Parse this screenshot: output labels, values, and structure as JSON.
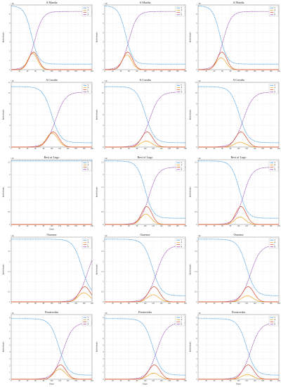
{
  "colors": {
    "S": "#2f8fd8",
    "A": "#f0a020",
    "I": "#d04a30",
    "R": "#8e3ba8"
  },
  "legend_labels": [
    "S",
    "A",
    "I",
    "R"
  ],
  "xlabel": "Days",
  "ylabel": "Individuals",
  "chart_data": [
    {
      "type": "line",
      "title": "A Mariña",
      "exponent": "×10⁴",
      "xlim": [
        0,
        200
      ],
      "ylim": [
        0,
        7
      ],
      "yticks": [
        0,
        1,
        2,
        3,
        4,
        5,
        6,
        7
      ],
      "xticks": [
        0,
        20,
        40,
        60,
        80,
        100,
        120,
        140,
        160,
        180,
        200
      ],
      "show_xlabel": false,
      "S": {
        "top": 6.9,
        "bottom": 0.6,
        "mid": 50,
        "width": 9
      },
      "R": {
        "top": 6.3,
        "mid": 58,
        "width": 10
      },
      "I": {
        "peak": 1.9,
        "center": 55,
        "width": 12
      },
      "A": {
        "peak": 1.75,
        "center": 53,
        "width": 12
      }
    },
    {
      "type": "line",
      "title": "A Mariña",
      "exponent": "×10⁴",
      "xlim": [
        0,
        200
      ],
      "ylim": [
        0,
        7
      ],
      "yticks": [
        0,
        1,
        2,
        3,
        4,
        5,
        6,
        7
      ],
      "xticks": [
        0,
        20,
        40,
        60,
        80,
        100,
        120,
        140,
        160,
        180,
        200
      ],
      "show_xlabel": false,
      "S": {
        "top": 6.9,
        "bottom": 0.6,
        "mid": 52,
        "width": 9
      },
      "R": {
        "top": 6.3,
        "mid": 60,
        "width": 10
      },
      "I": {
        "peak": 1.9,
        "center": 57,
        "width": 12
      },
      "A": {
        "peak": 1.6,
        "center": 55,
        "width": 12
      }
    },
    {
      "type": "line",
      "title": "A Mariña",
      "exponent": "×10⁴",
      "xlim": [
        0,
        200
      ],
      "ylim": [
        0,
        7
      ],
      "yticks": [
        0,
        1,
        2,
        3,
        4,
        5,
        6,
        7
      ],
      "xticks": [
        0,
        20,
        40,
        60,
        80,
        100,
        120,
        140,
        160,
        180,
        200
      ],
      "show_xlabel": false,
      "S": {
        "top": 6.9,
        "bottom": 0.6,
        "mid": 54,
        "width": 9
      },
      "R": {
        "top": 6.3,
        "mid": 62,
        "width": 10
      },
      "I": {
        "peak": 1.9,
        "center": 59,
        "width": 12
      },
      "A": {
        "peak": 1.3,
        "center": 57,
        "width": 12
      }
    },
    {
      "type": "line",
      "title": "A Coruña",
      "exponent": "×10⁵",
      "xlim": [
        0,
        200
      ],
      "ylim": [
        0,
        12
      ],
      "yticks": [
        0,
        2,
        4,
        6,
        8,
        10,
        12
      ],
      "xticks": [
        0,
        20,
        40,
        60,
        80,
        100,
        120,
        140,
        160,
        180,
        200
      ],
      "show_xlabel": false,
      "S": {
        "top": 11.2,
        "bottom": 0.8,
        "mid": 100,
        "width": 11
      },
      "R": {
        "top": 10.2,
        "mid": 110,
        "width": 12
      },
      "I": {
        "peak": 2.8,
        "center": 104,
        "width": 14
      },
      "A": {
        "peak": 2.6,
        "center": 101,
        "width": 14
      }
    },
    {
      "type": "line",
      "title": "A Coruña",
      "exponent": "×10⁵",
      "xlim": [
        0,
        200
      ],
      "ylim": [
        0,
        12
      ],
      "yticks": [
        0,
        2,
        4,
        6,
        8,
        10,
        12
      ],
      "xticks": [
        0,
        20,
        40,
        60,
        80,
        100,
        120,
        140,
        160,
        180,
        200
      ],
      "show_xlabel": false,
      "S": {
        "top": 11.2,
        "bottom": 0.8,
        "mid": 101,
        "width": 11
      },
      "R": {
        "top": 10.2,
        "mid": 111,
        "width": 12
      },
      "I": {
        "peak": 2.8,
        "center": 105,
        "width": 14
      },
      "A": {
        "peak": 1.1,
        "center": 103,
        "width": 14
      }
    },
    {
      "type": "line",
      "title": "A Coruña",
      "exponent": "×10⁵",
      "xlim": [
        0,
        200
      ],
      "ylim": [
        0,
        12
      ],
      "yticks": [
        0,
        2,
        4,
        6,
        8,
        10,
        12
      ],
      "xticks": [
        0,
        20,
        40,
        60,
        80,
        100,
        120,
        140,
        160,
        180,
        200
      ],
      "show_xlabel": false,
      "S": {
        "top": 11.2,
        "bottom": 0.8,
        "mid": 102,
        "width": 11
      },
      "R": {
        "top": 10.2,
        "mid": 112,
        "width": 12
      },
      "I": {
        "peak": 2.8,
        "center": 106,
        "width": 14
      },
      "A": {
        "peak": 0.9,
        "center": 104,
        "width": 14
      }
    },
    {
      "type": "line",
      "title": "Rest of Lugo",
      "exponent": "×10⁵",
      "xlim": [
        0,
        200
      ],
      "ylim": [
        0,
        2.6
      ],
      "yticks": [
        0,
        0.5,
        1,
        1.5,
        2,
        2.5
      ],
      "xticks": [
        0,
        20,
        40,
        60,
        80,
        100,
        120,
        140,
        160,
        180,
        200
      ],
      "show_xlabel": true,
      "S": {
        "top": 2.55,
        "bottom": 2.55,
        "mid": 400,
        "width": 10
      },
      "R": {
        "top": 0.0,
        "mid": 400,
        "width": 10
      },
      "I": {
        "peak": 0.0,
        "center": 100,
        "width": 10
      },
      "A": {
        "peak": 0.0,
        "center": 100,
        "width": 10
      }
    },
    {
      "type": "line",
      "title": "Rest of Lugo",
      "exponent": "×10⁵",
      "xlim": [
        0,
        200
      ],
      "ylim": [
        0,
        2.6
      ],
      "yticks": [
        0,
        0.5,
        1,
        1.5,
        2,
        2.5
      ],
      "xticks": [
        0,
        20,
        40,
        60,
        80,
        100,
        120,
        140,
        160,
        180,
        200
      ],
      "show_xlabel": false,
      "S": {
        "top": 2.55,
        "bottom": 0.25,
        "mid": 100,
        "width": 10
      },
      "R": {
        "top": 2.3,
        "mid": 110,
        "width": 11
      },
      "I": {
        "peak": 0.72,
        "center": 104,
        "width": 13
      },
      "A": {
        "peak": 0.42,
        "center": 102,
        "width": 13
      }
    },
    {
      "type": "line",
      "title": "Rest of Lugo",
      "exponent": "×10⁵",
      "xlim": [
        0,
        200
      ],
      "ylim": [
        0,
        2.6
      ],
      "yticks": [
        0,
        0.5,
        1,
        1.5,
        2,
        2.5
      ],
      "xticks": [
        0,
        20,
        40,
        60,
        80,
        100,
        120,
        140,
        160,
        180,
        200
      ],
      "show_xlabel": false,
      "S": {
        "top": 2.55,
        "bottom": 0.25,
        "mid": 102,
        "width": 10
      },
      "R": {
        "top": 2.3,
        "mid": 112,
        "width": 11
      },
      "I": {
        "peak": 0.72,
        "center": 106,
        "width": 13
      },
      "A": {
        "peak": 0.3,
        "center": 104,
        "width": 13
      }
    },
    {
      "type": "line",
      "title": "Ourense",
      "exponent": "×10⁵",
      "xlim": [
        0,
        200
      ],
      "ylim": [
        0,
        3.2
      ],
      "yticks": [
        0,
        0.5,
        1,
        1.5,
        2,
        2.5,
        3
      ],
      "xticks": [
        0,
        20,
        40,
        60,
        80,
        100,
        120,
        140,
        160,
        180,
        200
      ],
      "show_xlabel": false,
      "S": {
        "top": 3.1,
        "bottom": 0.3,
        "mid": 175,
        "width": 11
      },
      "R": {
        "top": 2.8,
        "mid": 188,
        "width": 12
      },
      "I": {
        "peak": 0.75,
        "center": 182,
        "width": 14
      },
      "A": {
        "peak": 0.45,
        "center": 180,
        "width": 14
      }
    },
    {
      "type": "line",
      "title": "Ourense",
      "exponent": "×10⁵",
      "xlim": [
        0,
        200
      ],
      "ylim": [
        0,
        3.2
      ],
      "yticks": [
        0,
        0.5,
        1,
        1.5,
        2,
        2.5,
        3
      ],
      "xticks": [
        0,
        20,
        40,
        60,
        80,
        100,
        120,
        140,
        160,
        180,
        200
      ],
      "show_xlabel": false,
      "S": {
        "top": 3.1,
        "bottom": 0.3,
        "mid": 118,
        "width": 11
      },
      "R": {
        "top": 2.8,
        "mid": 128,
        "width": 12
      },
      "I": {
        "peak": 0.75,
        "center": 122,
        "width": 14
      },
      "A": {
        "peak": 0.35,
        "center": 120,
        "width": 14
      }
    },
    {
      "type": "line",
      "title": "Ourense",
      "exponent": "×10⁵",
      "xlim": [
        0,
        200
      ],
      "ylim": [
        0,
        3.2
      ],
      "yticks": [
        0,
        0.5,
        1,
        1.5,
        2,
        2.5,
        3
      ],
      "xticks": [
        0,
        20,
        40,
        60,
        80,
        100,
        120,
        140,
        160,
        180,
        200
      ],
      "show_xlabel": false,
      "S": {
        "top": 3.1,
        "bottom": 0.3,
        "mid": 120,
        "width": 11
      },
      "R": {
        "top": 2.8,
        "mid": 130,
        "width": 12
      },
      "I": {
        "peak": 0.75,
        "center": 124,
        "width": 14
      },
      "A": {
        "peak": 0.3,
        "center": 122,
        "width": 14
      }
    },
    {
      "type": "line",
      "title": "Pontevedra",
      "exponent": "×10⁵",
      "xlim": [
        0,
        200
      ],
      "ylim": [
        0,
        9.5
      ],
      "yticks": [
        0,
        1,
        2,
        3,
        4,
        5,
        6,
        7,
        8,
        9
      ],
      "xticks": [
        0,
        20,
        40,
        60,
        80,
        100,
        120,
        140,
        160,
        180,
        200
      ],
      "show_xlabel": true,
      "S": {
        "top": 8.9,
        "bottom": 0.6,
        "mid": 118,
        "width": 11
      },
      "R": {
        "top": 8.3,
        "mid": 128,
        "width": 12
      },
      "I": {
        "peak": 2.1,
        "center": 122,
        "width": 14
      },
      "A": {
        "peak": 1.5,
        "center": 120,
        "width": 14
      }
    },
    {
      "type": "line",
      "title": "Pontevedra",
      "exponent": "×10⁵",
      "xlim": [
        0,
        200
      ],
      "ylim": [
        0,
        9.5
      ],
      "yticks": [
        0,
        1,
        2,
        3,
        4,
        5,
        6,
        7,
        8,
        9
      ],
      "xticks": [
        0,
        20,
        40,
        60,
        80,
        100,
        120,
        140,
        160,
        180,
        200
      ],
      "show_xlabel": true,
      "S": {
        "top": 8.9,
        "bottom": 0.6,
        "mid": 119,
        "width": 11
      },
      "R": {
        "top": 8.3,
        "mid": 129,
        "width": 12
      },
      "I": {
        "peak": 2.1,
        "center": 123,
        "width": 14
      },
      "A": {
        "peak": 0.9,
        "center": 121,
        "width": 14
      }
    },
    {
      "type": "line",
      "title": "Pontevedra",
      "exponent": "×10⁵",
      "xlim": [
        0,
        200
      ],
      "ylim": [
        0,
        9.5
      ],
      "yticks": [
        0,
        1,
        2,
        3,
        4,
        5,
        6,
        7,
        8,
        9
      ],
      "xticks": [
        0,
        20,
        40,
        60,
        80,
        100,
        120,
        140,
        160,
        180,
        200
      ],
      "show_xlabel": true,
      "S": {
        "top": 8.9,
        "bottom": 0.6,
        "mid": 120,
        "width": 11
      },
      "R": {
        "top": 8.3,
        "mid": 130,
        "width": 12
      },
      "I": {
        "peak": 2.1,
        "center": 124,
        "width": 14
      },
      "A": {
        "peak": 0.7,
        "center": 122,
        "width": 14
      }
    }
  ]
}
